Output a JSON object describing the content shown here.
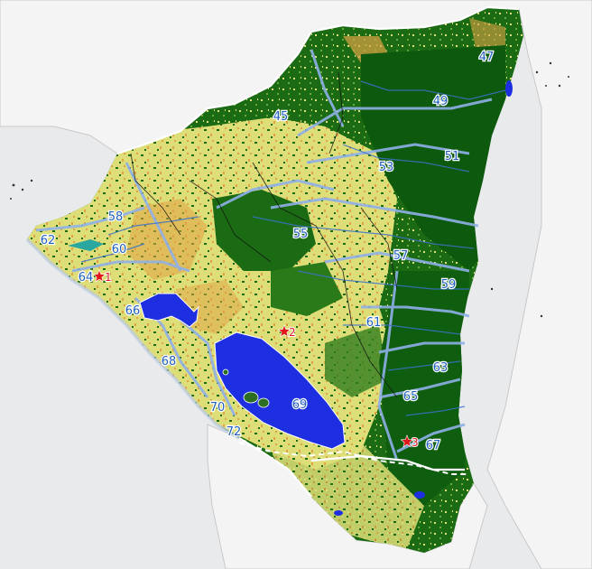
{
  "colors": {
    "background": "#e9eaec",
    "land_neighbor": "#f4f4f4",
    "country_forest": "#1a6b14",
    "forest_dark": "#0d5a0e",
    "cropland": "#dede78",
    "crop_orange": "#e0a244",
    "lakes": "#1d2fe0",
    "basin_boundary": "#8fb0e8",
    "rivers": "#3a72c8",
    "border": "#ffffff",
    "sites": "#e0161b"
  },
  "basins": [
    {
      "id": "b45",
      "label": "45"
    },
    {
      "id": "b47",
      "label": "47"
    },
    {
      "id": "b49",
      "label": "49"
    },
    {
      "id": "b51",
      "label": "51"
    },
    {
      "id": "b53",
      "label": "53"
    },
    {
      "id": "b55",
      "label": "55"
    },
    {
      "id": "b57",
      "label": "57"
    },
    {
      "id": "b58",
      "label": "58"
    },
    {
      "id": "b59",
      "label": "59"
    },
    {
      "id": "b60",
      "label": "60"
    },
    {
      "id": "b61",
      "label": "61"
    },
    {
      "id": "b62",
      "label": "62"
    },
    {
      "id": "b63",
      "label": "63"
    },
    {
      "id": "b64",
      "label": "64"
    },
    {
      "id": "b65",
      "label": "65"
    },
    {
      "id": "b66",
      "label": "66"
    },
    {
      "id": "b67",
      "label": "67"
    },
    {
      "id": "b68",
      "label": "68"
    },
    {
      "id": "b69",
      "label": "69"
    },
    {
      "id": "b70",
      "label": "70"
    },
    {
      "id": "b72",
      "label": "72"
    }
  ],
  "sites": [
    {
      "id": "s1",
      "label": "1"
    },
    {
      "id": "s2",
      "label": "2"
    },
    {
      "id": "s3",
      "label": "3"
    }
  ]
}
